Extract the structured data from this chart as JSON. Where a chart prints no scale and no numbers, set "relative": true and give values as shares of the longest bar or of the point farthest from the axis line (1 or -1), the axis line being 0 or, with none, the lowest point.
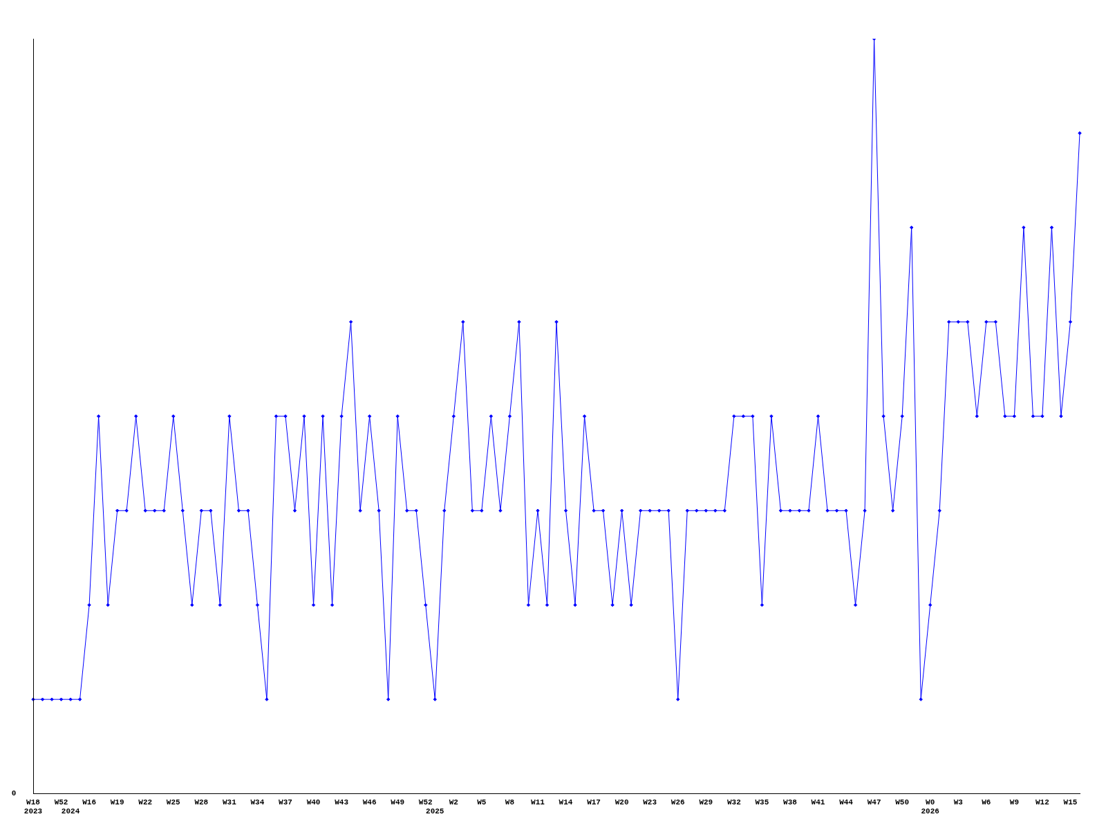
{
  "chart_data": {
    "type": "line",
    "relative": true,
    "color": "#0000ff",
    "marker": "diamond",
    "line_style": "solid",
    "grid": false,
    "legend": false,
    "annotations": [
      "0"
    ],
    "categories": [
      "W18\n2023",
      null,
      null,
      "W52",
      "\n2024",
      null,
      "W16",
      null,
      null,
      "W19",
      null,
      null,
      "W22",
      null,
      null,
      "W25",
      null,
      null,
      "W28",
      null,
      null,
      "W31",
      null,
      null,
      "W34",
      null,
      null,
      "W37",
      null,
      null,
      "W40",
      null,
      null,
      "W43",
      null,
      null,
      "W46",
      null,
      null,
      "W49",
      null,
      null,
      "W52",
      "\n2025",
      null,
      "W2",
      null,
      null,
      "W5",
      null,
      null,
      "W8",
      null,
      null,
      "W11",
      null,
      null,
      "W14",
      null,
      null,
      "W17",
      null,
      null,
      "W20",
      null,
      null,
      "W23",
      null,
      null,
      "W26",
      null,
      null,
      "W29",
      null,
      null,
      "W32",
      null,
      null,
      "W35",
      null,
      null,
      "W38",
      null,
      null,
      "W41",
      null,
      null,
      "W44",
      null,
      null,
      "W47",
      null,
      null,
      "W50",
      null,
      null,
      "W0\n2026",
      null,
      null,
      "W3",
      null,
      null,
      "W6",
      null,
      null,
      "W9",
      null,
      null,
      "W12",
      null,
      null,
      "W15",
      null
    ],
    "values": [
      0.125,
      0.125,
      0.125,
      0.125,
      0.125,
      0.125,
      0.25,
      0.5,
      0.25,
      0.375,
      0.375,
      0.5,
      0.375,
      0.375,
      0.375,
      0.5,
      0.375,
      0.25,
      0.375,
      0.375,
      0.25,
      0.5,
      0.375,
      0.375,
      0.25,
      0.125,
      0.5,
      0.5,
      0.375,
      0.5,
      0.25,
      0.5,
      0.25,
      0.5,
      0.625,
      0.375,
      0.5,
      0.375,
      0.125,
      0.5,
      0.375,
      0.375,
      0.25,
      0.125,
      0.375,
      0.5,
      0.625,
      0.375,
      0.375,
      0.5,
      0.375,
      0.5,
      0.625,
      0.25,
      0.375,
      0.25,
      0.625,
      0.375,
      0.25,
      0.5,
      0.375,
      0.375,
      0.25,
      0.375,
      0.25,
      0.375,
      0.375,
      0.375,
      0.375,
      0.125,
      0.375,
      0.375,
      0.375,
      0.375,
      0.375,
      0.5,
      0.5,
      0.5,
      0.25,
      0.5,
      0.375,
      0.375,
      0.375,
      0.375,
      0.5,
      0.375,
      0.375,
      0.375,
      0.25,
      0.375,
      1,
      0.5,
      0.375,
      0.5,
      0.75,
      0.125,
      0.25,
      0.375,
      0.625,
      0.625,
      0.625,
      0.5,
      0.625,
      0.625,
      0.5,
      0.5,
      0.75,
      0.5,
      0.5,
      0.75,
      0.5,
      0.625,
      0.875
    ]
  }
}
